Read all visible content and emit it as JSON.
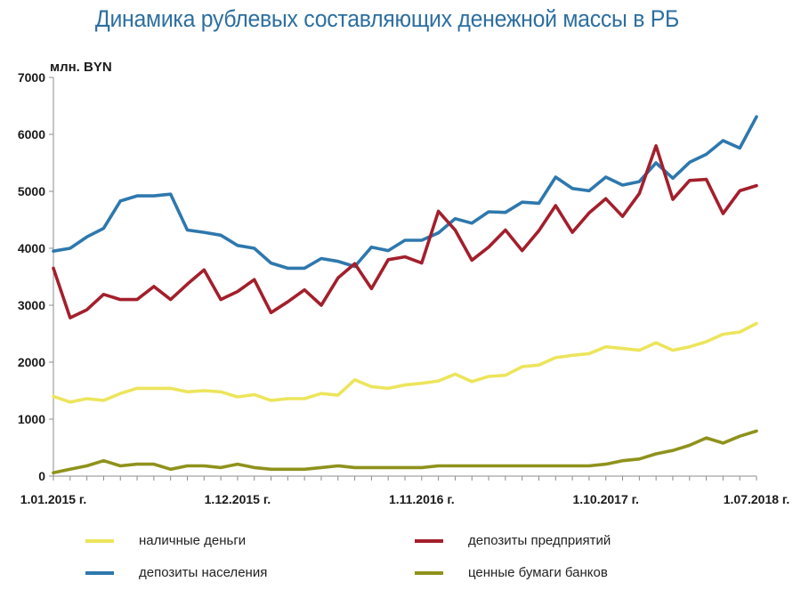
{
  "chart_data": {
    "type": "line",
    "title": "Динамика рублевых составляющих денежной массы в РБ",
    "ylabel": "млн. BYN",
    "ylim": [
      0,
      7000
    ],
    "yticks": [
      0,
      1000,
      2000,
      3000,
      4000,
      5000,
      6000,
      7000
    ],
    "x_tick_labels": [
      {
        "index": 0,
        "label": "1.01.2015 г."
      },
      {
        "index": 11,
        "label": "1.12.2015 г."
      },
      {
        "index": 22,
        "label": "1.11.2016 г."
      },
      {
        "index": 33,
        "label": "1.10.2017 г."
      },
      {
        "index": 42,
        "label": "1.07.2018 г."
      }
    ],
    "grid": false,
    "legend_position": "bottom",
    "series": [
      {
        "name": "депозиты населения",
        "color": "#2e78ad",
        "values": [
          3950,
          4000,
          4200,
          4350,
          4830,
          4920,
          4920,
          4950,
          4320,
          4280,
          4230,
          4050,
          4000,
          3740,
          3650,
          3650,
          3820,
          3770,
          3680,
          4020,
          3960,
          4140,
          4140,
          4270,
          4520,
          4440,
          4640,
          4630,
          4810,
          4790,
          5250,
          5050,
          5010,
          5250,
          5110,
          5170,
          5500,
          5230,
          5510,
          5650,
          5890,
          5760,
          6310
        ]
      },
      {
        "name": "депозиты предприятий",
        "color": "#a31f2c",
        "values": [
          3650,
          2780,
          2920,
          3190,
          3100,
          3100,
          3330,
          3100,
          3370,
          3620,
          3100,
          3240,
          3450,
          2870,
          3060,
          3270,
          3000,
          3480,
          3730,
          3290,
          3800,
          3850,
          3740,
          4650,
          4320,
          3790,
          4020,
          4320,
          3960,
          4310,
          4750,
          4280,
          4620,
          4870,
          4560,
          4960,
          5800,
          4860,
          5190,
          5210,
          4610,
          5010,
          5100
        ]
      },
      {
        "name": "наличные деньги",
        "color": "#ece55c",
        "values": [
          1400,
          1300,
          1360,
          1330,
          1450,
          1540,
          1540,
          1540,
          1480,
          1500,
          1480,
          1390,
          1430,
          1330,
          1360,
          1360,
          1450,
          1420,
          1690,
          1570,
          1540,
          1600,
          1630,
          1670,
          1790,
          1660,
          1750,
          1770,
          1920,
          1950,
          2080,
          2120,
          2150,
          2270,
          2240,
          2210,
          2340,
          2210,
          2270,
          2360,
          2490,
          2530,
          2680
        ]
      },
      {
        "name": "ценные бумаги банков",
        "color": "#8f921b",
        "values": [
          60,
          120,
          180,
          270,
          180,
          210,
          210,
          120,
          180,
          180,
          150,
          210,
          150,
          120,
          120,
          120,
          150,
          180,
          150,
          150,
          150,
          150,
          150,
          180,
          180,
          180,
          180,
          180,
          180,
          180,
          180,
          180,
          180,
          210,
          270,
          300,
          390,
          450,
          540,
          670,
          580,
          700,
          790
        ]
      }
    ]
  },
  "legend": {
    "items": [
      {
        "label": "наличные деньги",
        "color": "#ece55c"
      },
      {
        "label": "депозиты предприятий",
        "color": "#a31f2c"
      },
      {
        "label": "депозиты населения",
        "color": "#2e78ad"
      },
      {
        "label": "ценные бумаги банков",
        "color": "#8f921b"
      }
    ]
  }
}
